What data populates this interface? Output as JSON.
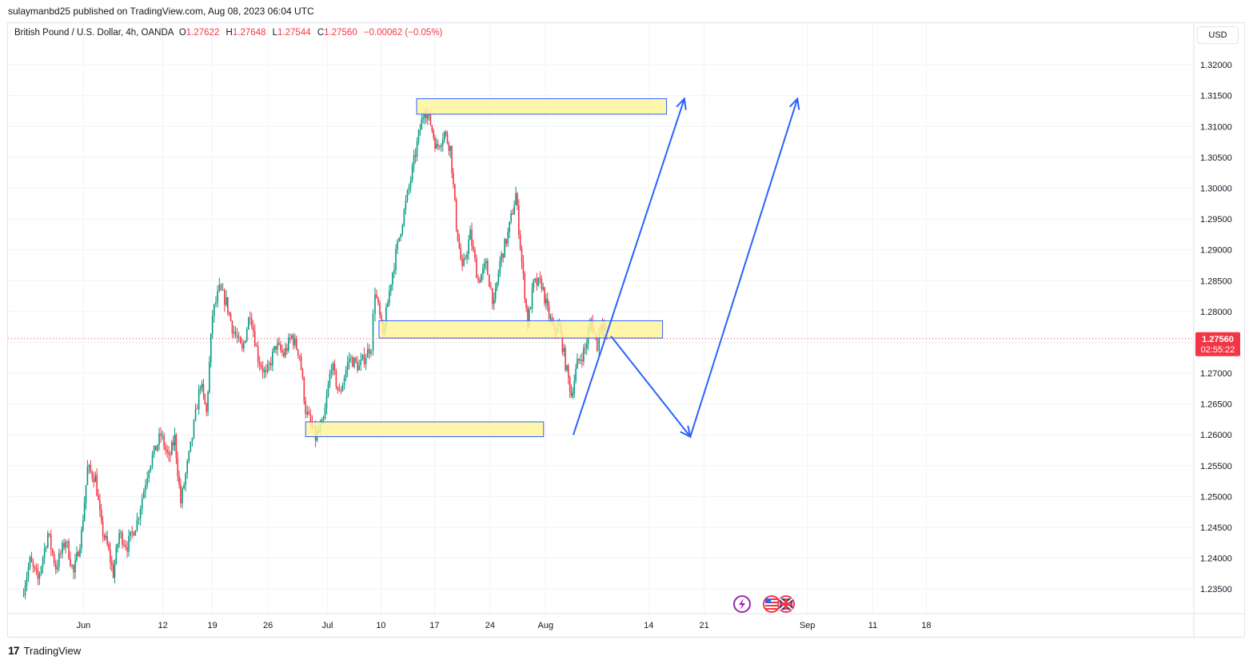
{
  "publisher": "sulaymanbd25 published on TradingView.com, Aug 08, 2023 06:04 UTC",
  "legend": {
    "symbol": "British Pound / U.S. Dollar, 4h, OANDA",
    "open_label": "O",
    "open": "1.27622",
    "high_label": "H",
    "high": "1.27648",
    "low_label": "L",
    "low": "1.27544",
    "close_label": "C",
    "close": "1.27560",
    "change": "−0.00062 (−0.05%)"
  },
  "currency_button": "USD",
  "price_badge": {
    "price": "1.27560",
    "countdown": "02:55:22"
  },
  "footer": {
    "logo": "17",
    "brand": "TradingView"
  },
  "colors": {
    "up": "#089981",
    "down": "#f23645",
    "zone_fill": "#fff59d",
    "zone_border": "#2962ff",
    "arrow": "#2962ff"
  },
  "icons": [
    "lightning-event-icon",
    "us-flag-icon",
    "uk-flag-icon"
  ],
  "chart_data": {
    "type": "candlestick",
    "ylim": [
      1.231,
      1.323
    ],
    "y_ticks": [
      "1.23500",
      "1.24000",
      "1.24500",
      "1.25000",
      "1.25500",
      "1.26000",
      "1.26500",
      "1.27000",
      "1.27500",
      "1.28000",
      "1.28500",
      "1.29000",
      "1.29500",
      "1.30000",
      "1.30500",
      "1.31000",
      "1.31500",
      "1.32000"
    ],
    "x_ticks": [
      {
        "label": "Jun",
        "t": 0.6
      },
      {
        "label": "12",
        "t": 8.6
      },
      {
        "label": "19",
        "t": 13.6
      },
      {
        "label": "26",
        "t": 19.2
      },
      {
        "label": "Jul",
        "t": 25.2
      },
      {
        "label": "10",
        "t": 30.6
      },
      {
        "label": "17",
        "t": 36.0
      },
      {
        "label": "24",
        "t": 41.6
      },
      {
        "label": "Aug",
        "t": 47.2
      },
      {
        "label": "14",
        "t": 57.6
      },
      {
        "label": "21",
        "t": 63.2
      },
      {
        "label": "Sep",
        "t": 73.6
      },
      {
        "label": "11",
        "t": 80.2
      },
      {
        "label": "18",
        "t": 85.6
      }
    ],
    "path_points": [
      [
        -5.6,
        1.234
      ],
      [
        -4.8,
        1.2395
      ],
      [
        -4.0,
        1.2365
      ],
      [
        -3.0,
        1.244
      ],
      [
        -2.2,
        1.2385
      ],
      [
        -1.2,
        1.243
      ],
      [
        -0.4,
        1.2375
      ],
      [
        0.4,
        1.244
      ],
      [
        1.0,
        1.2545
      ],
      [
        1.8,
        1.253
      ],
      [
        2.4,
        1.245
      ],
      [
        3.0,
        1.242
      ],
      [
        3.6,
        1.2375
      ],
      [
        4.2,
        1.244
      ],
      [
        5.0,
        1.242
      ],
      [
        6.0,
        1.246
      ],
      [
        7.2,
        1.255
      ],
      [
        8.4,
        1.26
      ],
      [
        9.2,
        1.256
      ],
      [
        9.8,
        1.2595
      ],
      [
        10.4,
        1.249
      ],
      [
        11.4,
        1.258
      ],
      [
        12.4,
        1.2685
      ],
      [
        13.0,
        1.2635
      ],
      [
        13.6,
        1.2795
      ],
      [
        14.3,
        1.2835
      ],
      [
        15.0,
        1.2815
      ],
      [
        15.6,
        1.2775
      ],
      [
        16.6,
        1.2735
      ],
      [
        17.4,
        1.28
      ],
      [
        18.2,
        1.2725
      ],
      [
        19.0,
        1.2695
      ],
      [
        20.0,
        1.2745
      ],
      [
        20.8,
        1.273
      ],
      [
        21.6,
        1.276
      ],
      [
        22.4,
        1.273
      ],
      [
        23.0,
        1.264
      ],
      [
        24.0,
        1.2595
      ],
      [
        24.8,
        1.262
      ],
      [
        25.6,
        1.2715
      ],
      [
        26.4,
        1.2665
      ],
      [
        27.4,
        1.2725
      ],
      [
        28.4,
        1.271
      ],
      [
        29.6,
        1.2745
      ],
      [
        30.0,
        1.2835
      ],
      [
        30.8,
        1.276
      ],
      [
        31.6,
        1.285
      ],
      [
        32.6,
        1.2935
      ],
      [
        33.6,
        1.3015
      ],
      [
        34.4,
        1.3085
      ],
      [
        35.0,
        1.313
      ],
      [
        35.6,
        1.3105
      ],
      [
        36.2,
        1.3065
      ],
      [
        37.0,
        1.309
      ],
      [
        37.6,
        1.3065
      ],
      [
        38.2,
        1.294
      ],
      [
        38.8,
        1.2865
      ],
      [
        39.6,
        1.2925
      ],
      [
        40.4,
        1.285
      ],
      [
        41.2,
        1.2875
      ],
      [
        42.0,
        1.281
      ],
      [
        42.6,
        1.288
      ],
      [
        43.4,
        1.2925
      ],
      [
        44.2,
        1.299
      ],
      [
        44.8,
        1.288
      ],
      [
        45.4,
        1.278
      ],
      [
        46.0,
        1.2845
      ],
      [
        46.8,
        1.2845
      ],
      [
        47.4,
        1.28
      ],
      [
        48.0,
        1.277
      ],
      [
        48.6,
        1.2775
      ],
      [
        49.2,
        1.2715
      ],
      [
        49.8,
        1.2665
      ],
      [
        50.4,
        1.2715
      ],
      [
        51.2,
        1.274
      ],
      [
        51.8,
        1.2785
      ],
      [
        52.4,
        1.2745
      ],
      [
        52.8,
        1.2785
      ],
      [
        53.4,
        1.2765
      ]
    ],
    "last_price": 1.2756,
    "zones": [
      {
        "t_from": 34.2,
        "t_to": 59.4,
        "y_low": 1.312,
        "y_high": 1.3145
      },
      {
        "t_from": 30.4,
        "t_to": 59.0,
        "y_low": 1.2757,
        "y_high": 1.2785
      },
      {
        "t_from": 23.0,
        "t_to": 47.0,
        "y_low": 1.2597,
        "y_high": 1.2621
      }
    ],
    "arrows": [
      {
        "from": [
          50.0,
          1.26
        ],
        "to": [
          61.2,
          1.3145
        ],
        "head": true
      },
      {
        "from": [
          53.8,
          1.276
        ],
        "to": [
          61.8,
          1.2597
        ],
        "head": true
      },
      {
        "from": [
          61.8,
          1.2597
        ],
        "to": [
          72.6,
          1.3145
        ],
        "head": true
      }
    ]
  }
}
